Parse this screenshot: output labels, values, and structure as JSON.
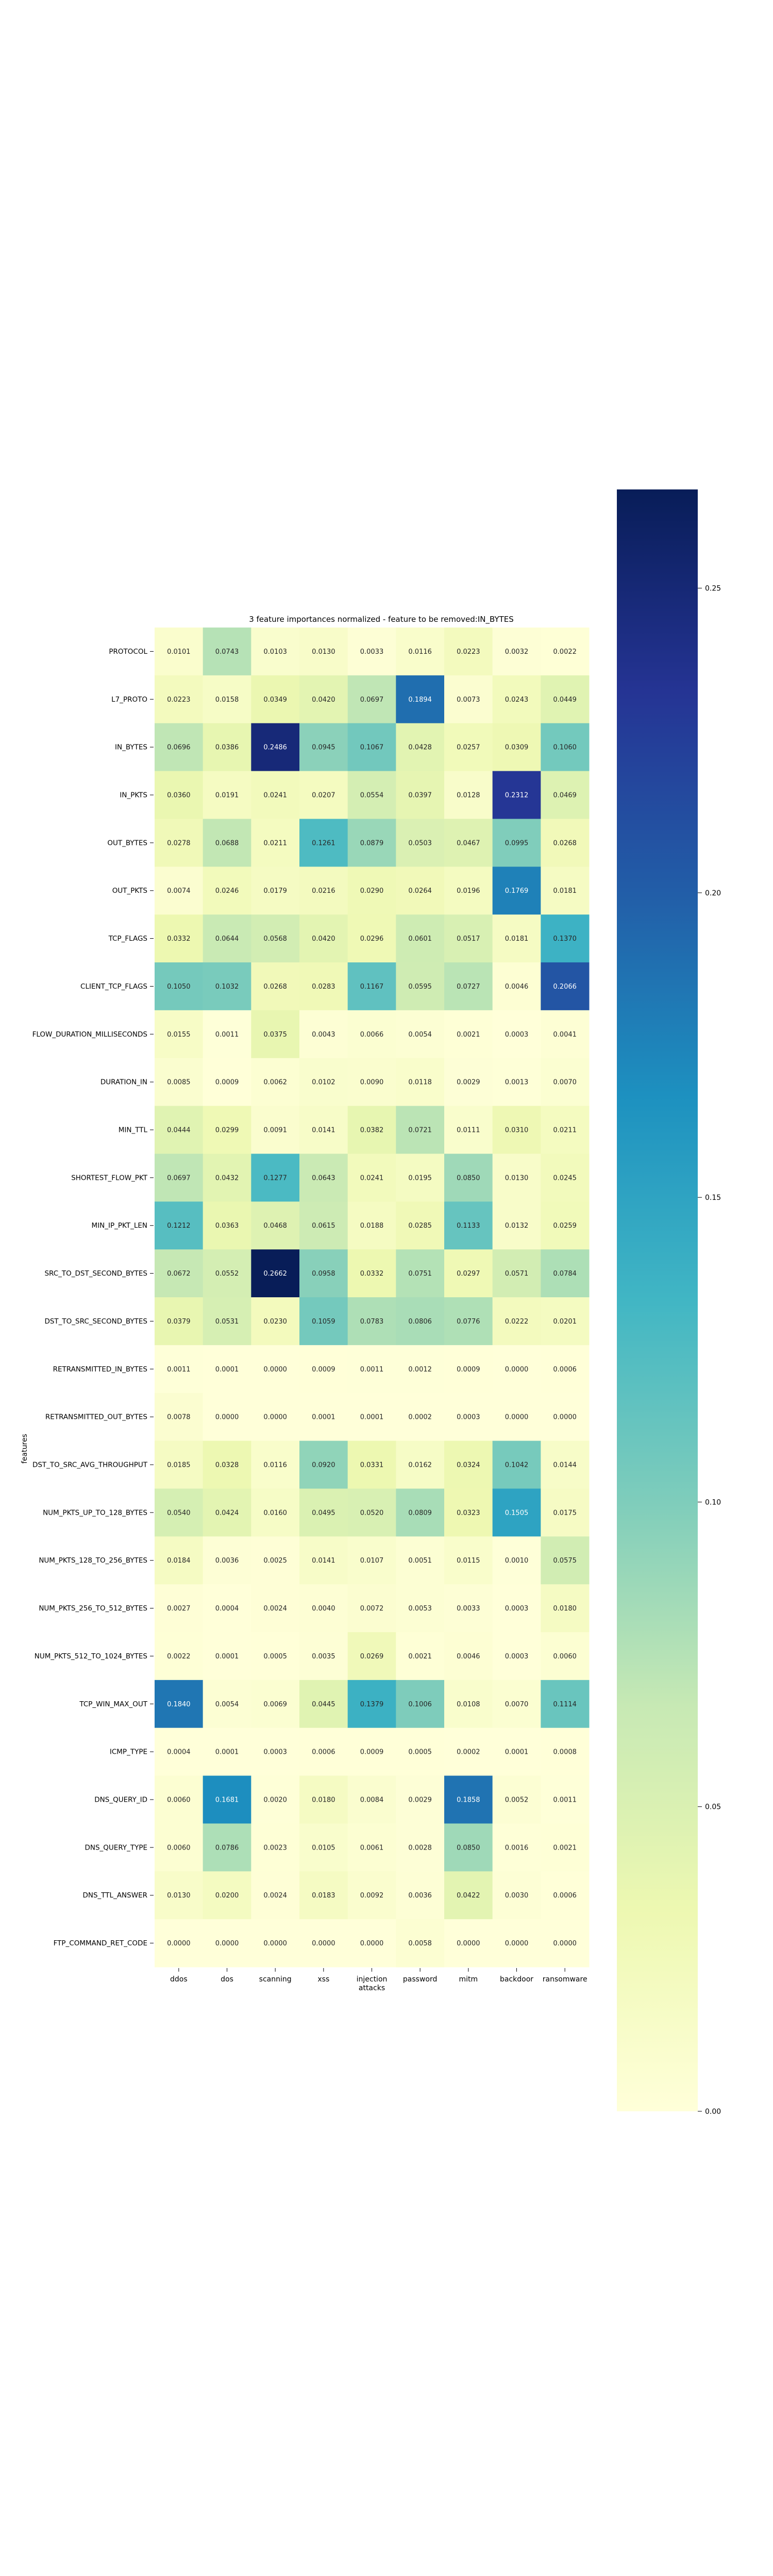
{
  "chart_data": {
    "type": "heatmap",
    "title": "3 feature importances normalized - feature to be removed:IN_BYTES",
    "xlabel": "",
    "ylabel": "features",
    "categories": [
      "ddos",
      "dos",
      "scanning",
      "xss",
      "injection\nattacks",
      "password",
      "mitm",
      "backdoor",
      "ransomware"
    ],
    "rows": [
      "PROTOCOL",
      "L7_PROTO",
      "IN_BYTES",
      "IN_PKTS",
      "OUT_BYTES",
      "OUT_PKTS",
      "TCP_FLAGS",
      "CLIENT_TCP_FLAGS",
      "FLOW_DURATION_MILLISECONDS",
      "DURATION_IN",
      "MIN_TTL",
      "SHORTEST_FLOW_PKT",
      "MIN_IP_PKT_LEN",
      "SRC_TO_DST_SECOND_BYTES",
      "DST_TO_SRC_SECOND_BYTES",
      "RETRANSMITTED_IN_BYTES",
      "RETRANSMITTED_OUT_BYTES",
      "DST_TO_SRC_AVG_THROUGHPUT",
      "NUM_PKTS_UP_TO_128_BYTES",
      "NUM_PKTS_128_TO_256_BYTES",
      "NUM_PKTS_256_TO_512_BYTES",
      "NUM_PKTS_512_TO_1024_BYTES",
      "TCP_WIN_MAX_OUT",
      "ICMP_TYPE",
      "DNS_QUERY_ID",
      "DNS_QUERY_TYPE",
      "DNS_TTL_ANSWER",
      "FTP_COMMAND_RET_CODE"
    ],
    "values": [
      [
        0.0101,
        0.0743,
        0.0103,
        0.013,
        0.0033,
        0.0116,
        0.0223,
        0.0032,
        0.0022
      ],
      [
        0.0223,
        0.0158,
        0.0349,
        0.042,
        0.0697,
        0.1894,
        0.0073,
        0.0243,
        0.0449
      ],
      [
        0.0696,
        0.0386,
        0.2486,
        0.0945,
        0.1067,
        0.0428,
        0.0257,
        0.0309,
        0.106
      ],
      [
        0.036,
        0.0191,
        0.0241,
        0.0207,
        0.0554,
        0.0397,
        0.0128,
        0.2312,
        0.0469
      ],
      [
        0.0278,
        0.0688,
        0.0211,
        0.1261,
        0.0879,
        0.0503,
        0.0467,
        0.0995,
        0.0268
      ],
      [
        0.0074,
        0.0246,
        0.0179,
        0.0216,
        0.029,
        0.0264,
        0.0196,
        0.1769,
        0.0181
      ],
      [
        0.0332,
        0.0644,
        0.0568,
        0.042,
        0.0296,
        0.0601,
        0.0517,
        0.0181,
        0.137
      ],
      [
        0.105,
        0.1032,
        0.0268,
        0.0283,
        0.1167,
        0.0595,
        0.0727,
        0.0046,
        0.2066
      ],
      [
        0.0155,
        0.0011,
        0.0375,
        0.0043,
        0.0066,
        0.0054,
        0.0021,
        0.0003,
        0.0041
      ],
      [
        0.0085,
        0.0009,
        0.0062,
        0.0102,
        0.009,
        0.0118,
        0.0029,
        0.0013,
        0.007
      ],
      [
        0.0444,
        0.0299,
        0.0091,
        0.0141,
        0.0382,
        0.0721,
        0.0111,
        0.031,
        0.0211
      ],
      [
        0.0697,
        0.0432,
        0.1277,
        0.0643,
        0.0241,
        0.0195,
        0.085,
        0.013,
        0.0245
      ],
      [
        0.1212,
        0.0363,
        0.0468,
        0.0615,
        0.0188,
        0.0285,
        0.1133,
        0.0132,
        0.0259
      ],
      [
        0.0672,
        0.0552,
        0.2662,
        0.0958,
        0.0332,
        0.0751,
        0.0297,
        0.0571,
        0.0784
      ],
      [
        0.0379,
        0.0531,
        0.023,
        0.1059,
        0.0783,
        0.0806,
        0.0776,
        0.0222,
        0.0201
      ],
      [
        0.0011,
        0.0001,
        0.0,
        0.0009,
        0.0011,
        0.0012,
        0.0009,
        0.0,
        0.0006
      ],
      [
        0.0078,
        0.0,
        0.0,
        0.0001,
        0.0001,
        0.0002,
        0.0003,
        0.0,
        0.0
      ],
      [
        0.0185,
        0.0328,
        0.0116,
        0.092,
        0.0331,
        0.0162,
        0.0324,
        0.1042,
        0.0144
      ],
      [
        0.054,
        0.0424,
        0.016,
        0.0495,
        0.052,
        0.0809,
        0.0323,
        0.1505,
        0.0175
      ],
      [
        0.0184,
        0.0036,
        0.0025,
        0.0141,
        0.0107,
        0.0051,
        0.0115,
        0.001,
        0.0575
      ],
      [
        0.0027,
        0.0004,
        0.0024,
        0.004,
        0.0072,
        0.0053,
        0.0033,
        0.0003,
        0.018
      ],
      [
        0.0022,
        0.0001,
        0.0005,
        0.0035,
        0.0269,
        0.0021,
        0.0046,
        0.0003,
        0.006
      ],
      [
        0.184,
        0.0054,
        0.0069,
        0.0445,
        0.1379,
        0.1006,
        0.0108,
        0.007,
        0.1114
      ],
      [
        0.0004,
        0.0001,
        0.0003,
        0.0006,
        0.0009,
        0.0005,
        0.0002,
        0.0001,
        0.0008
      ],
      [
        0.006,
        0.1681,
        0.002,
        0.018,
        0.0084,
        0.0029,
        0.1858,
        0.0052,
        0.0011
      ],
      [
        0.006,
        0.0786,
        0.0023,
        0.0105,
        0.0061,
        0.0028,
        0.085,
        0.0016,
        0.0021
      ],
      [
        0.013,
        0.02,
        0.0024,
        0.0183,
        0.0092,
        0.0036,
        0.0422,
        0.003,
        0.0006
      ],
      [
        0.0,
        0.0,
        0.0,
        0.0,
        0.0,
        0.0058,
        0.0,
        0.0,
        0.0
      ]
    ],
    "vmin": 0.0,
    "vmax": 0.2662,
    "colorbar": {
      "ticks": [
        0.0,
        0.05,
        0.1,
        0.15,
        0.2,
        0.25
      ],
      "tick_labels": [
        "0.00",
        "0.05",
        "0.10",
        "0.15",
        "0.20",
        "0.25"
      ]
    },
    "colormap": "YlGnBu",
    "colormap_stops": [
      "#ffffd9",
      "#edf8b1",
      "#c7e9b4",
      "#7fcdbb",
      "#41b6c4",
      "#1d91c0",
      "#225ea8",
      "#253494",
      "#081d58"
    ]
  }
}
